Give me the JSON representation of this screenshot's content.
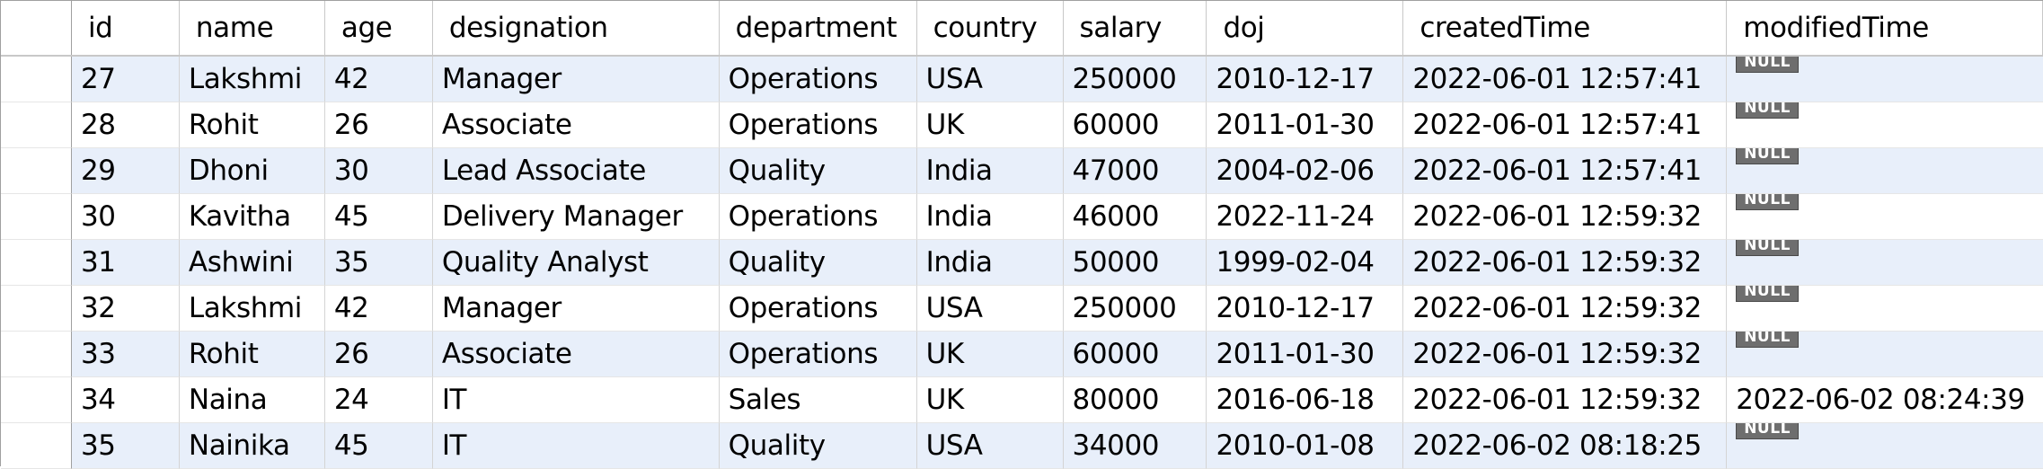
{
  "columns": [
    {
      "key": "id",
      "label": "id"
    },
    {
      "key": "name",
      "label": "name"
    },
    {
      "key": "age",
      "label": "age"
    },
    {
      "key": "designation",
      "label": "designation"
    },
    {
      "key": "department",
      "label": "department"
    },
    {
      "key": "country",
      "label": "country"
    },
    {
      "key": "salary",
      "label": "salary"
    },
    {
      "key": "doj",
      "label": "doj"
    },
    {
      "key": "createdTime",
      "label": "createdTime"
    },
    {
      "key": "modifiedTime",
      "label": "modifiedTime"
    }
  ],
  "null_label": "NULL",
  "rows": [
    {
      "id": "27",
      "name": "Lakshmi",
      "age": "42",
      "designation": "Manager",
      "department": "Operations",
      "country": "USA",
      "salary": "250000",
      "doj": "2010-12-17",
      "createdTime": "2022-06-01 12:57:41",
      "modifiedTime": null
    },
    {
      "id": "28",
      "name": "Rohit",
      "age": "26",
      "designation": "Associate",
      "department": "Operations",
      "country": "UK",
      "salary": "60000",
      "doj": "2011-01-30",
      "createdTime": "2022-06-01 12:57:41",
      "modifiedTime": null
    },
    {
      "id": "29",
      "name": "Dhoni",
      "age": "30",
      "designation": "Lead Associate",
      "department": "Quality",
      "country": "India",
      "salary": "47000",
      "doj": "2004-02-06",
      "createdTime": "2022-06-01 12:57:41",
      "modifiedTime": null
    },
    {
      "id": "30",
      "name": "Kavitha",
      "age": "45",
      "designation": "Delivery Manager",
      "department": "Operations",
      "country": "India",
      "salary": "46000",
      "doj": "2022-11-24",
      "createdTime": "2022-06-01 12:59:32",
      "modifiedTime": null
    },
    {
      "id": "31",
      "name": "Ashwini",
      "age": "35",
      "designation": "Quality Analyst",
      "department": "Quality",
      "country": "India",
      "salary": "50000",
      "doj": "1999-02-04",
      "createdTime": "2022-06-01 12:59:32",
      "modifiedTime": null
    },
    {
      "id": "32",
      "name": "Lakshmi",
      "age": "42",
      "designation": "Manager",
      "department": "Operations",
      "country": "USA",
      "salary": "250000",
      "doj": "2010-12-17",
      "createdTime": "2022-06-01 12:59:32",
      "modifiedTime": null
    },
    {
      "id": "33",
      "name": "Rohit",
      "age": "26",
      "designation": "Associate",
      "department": "Operations",
      "country": "UK",
      "salary": "60000",
      "doj": "2011-01-30",
      "createdTime": "2022-06-01 12:59:32",
      "modifiedTime": null
    },
    {
      "id": "34",
      "name": "Naina",
      "age": "24",
      "designation": "IT",
      "department": "Sales",
      "country": "UK",
      "salary": "80000",
      "doj": "2016-06-18",
      "createdTime": "2022-06-01 12:59:32",
      "modifiedTime": "2022-06-02 08:24:39"
    },
    {
      "id": "35",
      "name": "Nainika",
      "age": "45",
      "designation": "IT",
      "department": "Quality",
      "country": "USA",
      "salary": "34000",
      "doj": "2010-01-08",
      "createdTime": "2022-06-02 08:18:25",
      "modifiedTime": null
    }
  ]
}
